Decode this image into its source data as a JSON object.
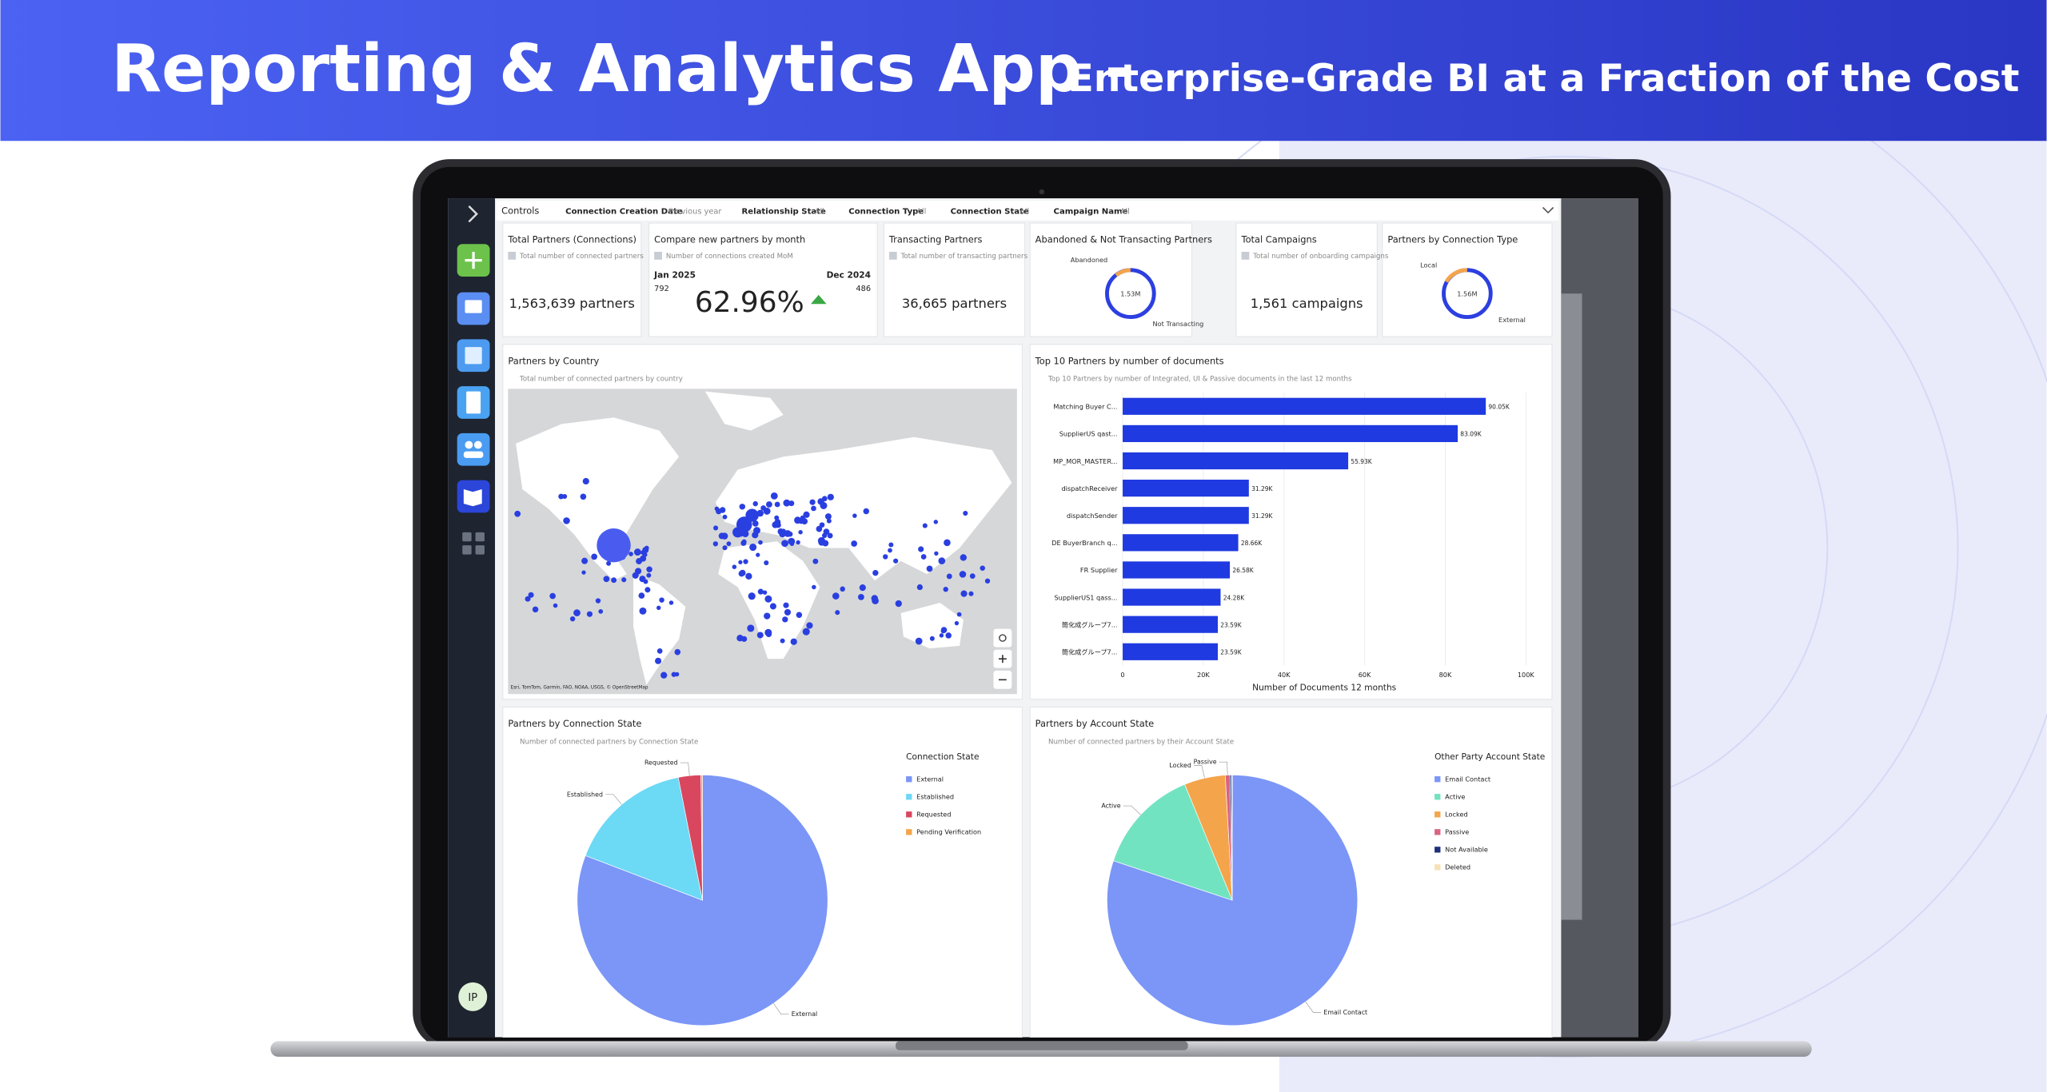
{
  "header": {
    "title": "Reporting & Analytics App -",
    "subtitle": "Enterprise-Grade BI at a Fraction of the Cost"
  },
  "sidebar": {
    "avatar": "IP"
  },
  "controls": {
    "label": "Controls",
    "filters": [
      {
        "name": "Connection Creation Date",
        "value": "Previous year"
      },
      {
        "name": "Relationship State",
        "value": "All"
      },
      {
        "name": "Connection Type",
        "value": "All"
      },
      {
        "name": "Connection State",
        "value": "All"
      },
      {
        "name": "Campaign Name",
        "value": "All"
      }
    ]
  },
  "kpis": {
    "total_partners": {
      "title": "Total Partners (Connections)",
      "description": "Total number of connected partners",
      "value": "1,563,639 partners"
    },
    "compare": {
      "title": "Compare new partners by month",
      "description": "Number of connections created MoM",
      "current_period": "Jan 2025",
      "current_value": "792",
      "previous_period": "Dec 2024",
      "previous_value": "486",
      "change": "62.96%"
    },
    "transacting": {
      "title": "Transacting Partners",
      "description": "Total number of transacting partners",
      "value": "36,665 partners"
    },
    "abandoned": {
      "title": "Abandoned & Not Transacting Partners",
      "center": "1.53M",
      "labels": [
        "Abandoned",
        "Not Transacting"
      ]
    },
    "campaigns": {
      "title": "Total Campaigns",
      "description": "Total number of onboarding campaigns",
      "value": "1,561 campaigns"
    },
    "connection_type": {
      "title": "Partners by Connection Type",
      "center": "1.56M",
      "labels": [
        "Local",
        "External"
      ]
    }
  },
  "map": {
    "title": "Partners by Country",
    "description": "Total number of connected partners by country",
    "attribution": "Esri, TomTom, Garmin, FAO, NOAA, USGS, © OpenStreetMap"
  },
  "top_partners": {
    "type": "bar",
    "title": "Top 10 Partners by number of documents",
    "subtitle": "Top 10 Partners by number of Integrated, UI & Passive documents in the last 12 months",
    "categories": [
      "Matching Buyer C...",
      "SupplierUS qast...",
      "MP_MOR_MASTER...",
      "dispatchReceiver",
      "dispatchSender",
      "DE BuyerBranch q...",
      "FR Supplier",
      "SupplierUS1 qass...",
      "簡化成グループ7...",
      "簡化成グループ7..."
    ],
    "values": [
      90050,
      83090,
      55930,
      31290,
      31290,
      28660,
      26580,
      24280,
      23590,
      23590
    ],
    "value_labels": [
      "90.05K",
      "83.09K",
      "55.93K",
      "31.29K",
      "31.29K",
      "28.66K",
      "26.58K",
      "24.28K",
      "23.59K",
      "23.59K"
    ],
    "xlim": [
      0,
      100000
    ],
    "xticks": [
      0,
      {
        "value": 20000,
        "label": "20K"
      },
      {
        "value": 40000,
        "label": "40K"
      },
      {
        "value": 60000,
        "label": "60K"
      },
      {
        "value": 80000,
        "label": "80K"
      },
      {
        "value": 100000,
        "label": "100K"
      }
    ],
    "x_label": "Number of Documents 12 months",
    "color": "#1f3ae0",
    "grid": true
  },
  "connection_state": {
    "type": "pie",
    "title": "Partners by Connection State",
    "subtitle": "Number of connected partners by Connection State",
    "legend_title": "Connection State",
    "categories": [
      "External",
      "Established",
      "Requested",
      "Pending Verification"
    ],
    "values": [
      80.8,
      16.1,
      2.9,
      0.2
    ],
    "colors": [
      "#7b96f7",
      "#6cd9f5",
      "#d9475f",
      "#f4a44a"
    ]
  },
  "account_state": {
    "type": "pie",
    "title": "Partners by Account State",
    "subtitle": "Number of connected partners by their Account State",
    "legend_title": "Other Party Account State",
    "categories": [
      "Email Contact",
      "Active",
      "Locked",
      "Passive",
      "Not Available",
      "Deleted"
    ],
    "values": [
      80.1,
      13.7,
      5.3,
      0.6,
      0.2,
      0.1
    ],
    "colors": [
      "#7b96f7",
      "#72e3c1",
      "#f4a44a",
      "#d9657f",
      "#1f2f7a",
      "#f7e0b5"
    ]
  }
}
